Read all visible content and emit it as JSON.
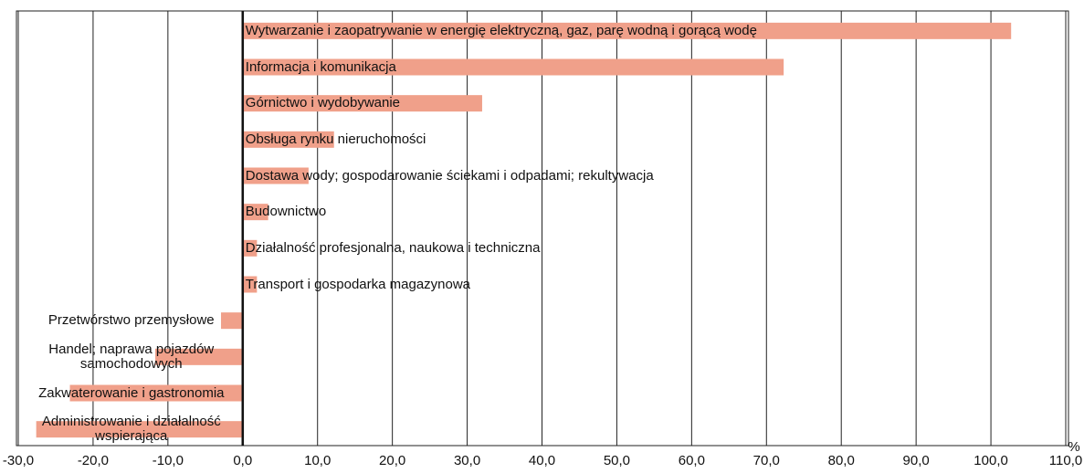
{
  "chart_data": {
    "type": "barh",
    "categories": [
      "Wytwarzanie i zaopatrywanie w energię elektryczną, gaz, parę wodną i gorącą wodę",
      "Informacja i komunikacja",
      "Górnictwo i wydobywanie",
      "Obsługa rynku nieruchomości",
      "Dostawa wody; gospodarowanie ściekami i odpadami; rekultywacja",
      "Budownictwo",
      "Działalność profesjonalna, naukowa i techniczna",
      "Transport i gospodarka magazynowa",
      "Przetwórstwo przemysłowe",
      "Handel; naprawa pojazdów samochodowych",
      "Zakwaterowanie i gastronomia",
      "Administrowanie i działalność wspierająca"
    ],
    "values": [
      102.7,
      72.3,
      32.0,
      12.2,
      8.8,
      3.4,
      1.9,
      1.9,
      -2.9,
      -11.7,
      -23.1,
      -27.6
    ],
    "color": "#f0a08a",
    "xlim": [
      -30,
      110
    ],
    "xticks": [
      {
        "value": -30,
        "label": "-30,0"
      },
      {
        "value": -20,
        "label": "-20,0"
      },
      {
        "value": -10,
        "label": "-10,0"
      },
      {
        "value": 0,
        "label": "0,0"
      },
      {
        "value": 10,
        "label": "10,0"
      },
      {
        "value": 20,
        "label": "20,0"
      },
      {
        "value": 30,
        "label": "30,0"
      },
      {
        "value": 40,
        "label": "40,0"
      },
      {
        "value": 50,
        "label": "50,0"
      },
      {
        "value": 60,
        "label": "60,0"
      },
      {
        "value": 70,
        "label": "70,0"
      },
      {
        "value": 80,
        "label": "80,0"
      },
      {
        "value": 90,
        "label": "90,0"
      },
      {
        "value": 100,
        "label": "100,0"
      },
      {
        "value": 110,
        "label": "110,0"
      }
    ],
    "x_label": "%",
    "grid": true
  }
}
